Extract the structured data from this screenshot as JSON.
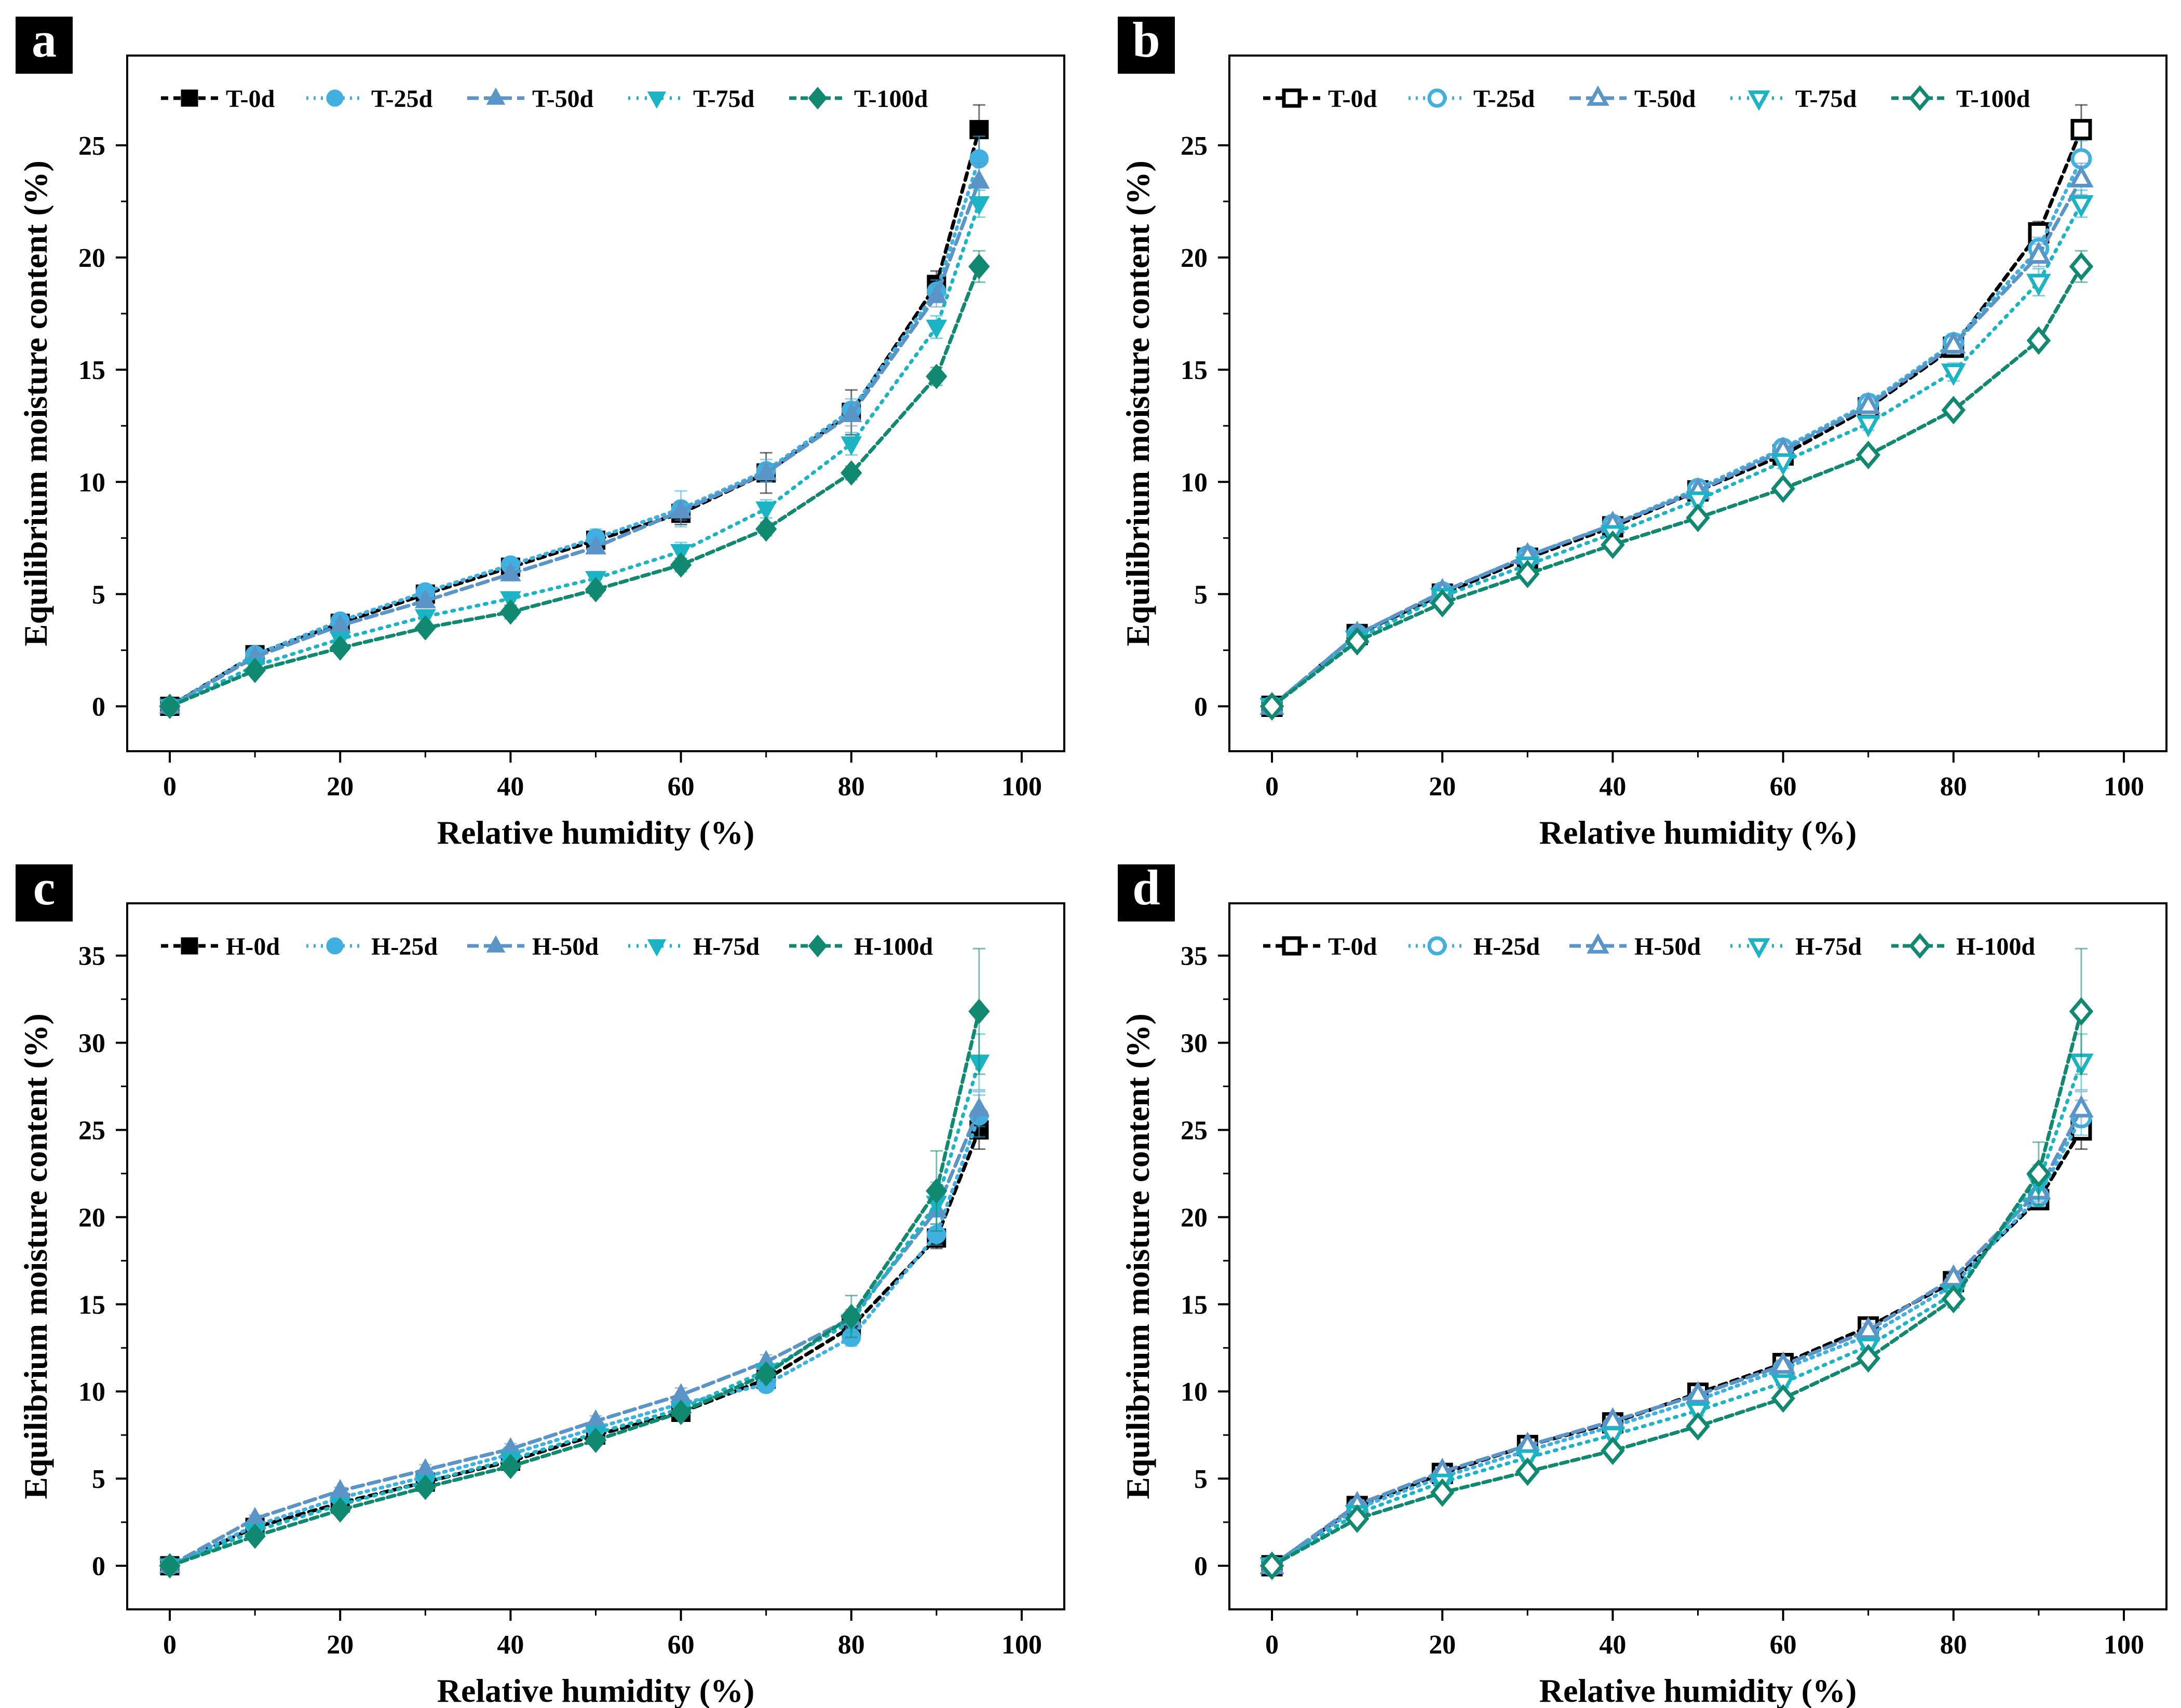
{
  "colors": [
    "#000000",
    "#3fb0e0",
    "#5b95c8",
    "#1cb4c4",
    "#118870"
  ],
  "chart_data": [
    {
      "panel": "a",
      "type": "line",
      "markers": [
        "square",
        "circle",
        "triangle-up",
        "triangle-down",
        "diamond"
      ],
      "filled": true,
      "xlabel": "Relative humidity (%)",
      "ylabel": "Equilibrium moisture content (%)",
      "xlim": [
        -5,
        105
      ],
      "ylim": [
        -2,
        29
      ],
      "xticks": [
        0,
        20,
        40,
        60,
        80,
        100
      ],
      "yticks": [
        0,
        5,
        10,
        15,
        20,
        25
      ],
      "x": [
        0,
        10,
        20,
        30,
        40,
        50,
        60,
        70,
        80,
        90,
        95
      ],
      "series": [
        {
          "name": "T-0d",
          "values": [
            0,
            2.3,
            3.7,
            5.0,
            6.2,
            7.4,
            8.6,
            10.4,
            13.1,
            18.8,
            25.7
          ],
          "errors": [
            0,
            0.3,
            0.3,
            0.3,
            0.3,
            0.4,
            0.5,
            0.9,
            1.0,
            0.6,
            1.1
          ]
        },
        {
          "name": "T-25d",
          "values": [
            0,
            2.3,
            3.8,
            5.1,
            6.3,
            7.5,
            8.8,
            10.5,
            13.2,
            18.5,
            24.4
          ],
          "errors": [
            0,
            0.2,
            0.2,
            0.3,
            0.3,
            0.4,
            0.8,
            0.5,
            0.5,
            0.5,
            1.0
          ]
        },
        {
          "name": "T-50d",
          "values": [
            0,
            2.2,
            3.6,
            4.7,
            5.9,
            7.1,
            8.7,
            10.4,
            13.0,
            18.3,
            23.4
          ],
          "errors": [
            0,
            0.2,
            0.2,
            0.3,
            0.3,
            0.3,
            0.4,
            0.4,
            0.5,
            0.5,
            0.8
          ]
        },
        {
          "name": "T-75d",
          "values": [
            0,
            1.8,
            3.0,
            4.0,
            4.8,
            5.7,
            6.9,
            8.8,
            11.7,
            16.9,
            22.4
          ],
          "errors": [
            0,
            0.2,
            0.2,
            0.2,
            0.3,
            0.3,
            0.4,
            0.4,
            0.5,
            0.5,
            0.6
          ]
        },
        {
          "name": "T-100d",
          "values": [
            0,
            1.6,
            2.6,
            3.5,
            4.2,
            5.2,
            6.3,
            7.9,
            10.4,
            14.7,
            19.6
          ],
          "errors": [
            0,
            0.1,
            0.2,
            0.2,
            0.3,
            0.3,
            0.3,
            0.3,
            0.3,
            0.4,
            0.7
          ]
        }
      ]
    },
    {
      "panel": "b",
      "type": "line",
      "markers": [
        "square",
        "circle",
        "triangle-up",
        "triangle-down",
        "diamond"
      ],
      "filled": false,
      "xlabel": "Relative humidity (%)",
      "ylabel": "Equilibrium moisture content (%)",
      "xlim": [
        -5,
        105
      ],
      "ylim": [
        -2,
        29
      ],
      "xticks": [
        0,
        20,
        40,
        60,
        80,
        100
      ],
      "yticks": [
        0,
        5,
        10,
        15,
        20,
        25
      ],
      "x": [
        0,
        10,
        20,
        30,
        40,
        50,
        60,
        70,
        80,
        90,
        95
      ],
      "series": [
        {
          "name": "T-0d",
          "values": [
            0,
            3.2,
            5.0,
            6.6,
            8.0,
            9.6,
            11.2,
            13.3,
            16.0,
            21.1,
            25.7
          ],
          "errors": [
            0,
            0.2,
            0.2,
            0.2,
            0.3,
            0.3,
            0.3,
            0.4,
            0.4,
            0.5,
            1.1
          ]
        },
        {
          "name": "T-25d",
          "values": [
            0,
            3.2,
            5.1,
            6.7,
            8.1,
            9.7,
            11.5,
            13.5,
            16.2,
            20.4,
            24.4
          ],
          "errors": [
            0,
            0.2,
            0.2,
            0.2,
            0.3,
            0.3,
            0.3,
            0.4,
            0.4,
            0.5,
            0.8
          ]
        },
        {
          "name": "T-50d",
          "values": [
            0,
            3.2,
            5.1,
            6.7,
            8.1,
            9.6,
            11.4,
            13.4,
            16.1,
            20.1,
            23.5
          ],
          "errors": [
            0,
            0.2,
            0.2,
            0.2,
            0.3,
            0.3,
            0.3,
            0.3,
            0.4,
            0.5,
            0.7
          ]
        },
        {
          "name": "T-75d",
          "values": [
            0,
            3.0,
            4.9,
            6.3,
            7.7,
            9.2,
            10.9,
            12.6,
            14.9,
            18.9,
            22.4
          ],
          "errors": [
            0,
            0.2,
            0.2,
            0.2,
            0.2,
            0.3,
            0.3,
            0.3,
            0.4,
            0.6,
            0.6
          ]
        },
        {
          "name": "T-100d",
          "values": [
            0,
            2.9,
            4.6,
            5.9,
            7.2,
            8.4,
            9.7,
            11.2,
            13.2,
            16.3,
            19.6
          ],
          "errors": [
            0,
            0.1,
            0.2,
            0.2,
            0.2,
            0.2,
            0.2,
            0.3,
            0.3,
            0.3,
            0.7
          ]
        }
      ]
    },
    {
      "panel": "c",
      "type": "line",
      "markers": [
        "square",
        "circle",
        "triangle-up",
        "triangle-down",
        "diamond"
      ],
      "filled": true,
      "xlabel": "Relative humidity (%)",
      "ylabel": "Equilibrium moisture content (%)",
      "xlim": [
        -5,
        105
      ],
      "ylim": [
        -2.5,
        38
      ],
      "xticks": [
        0,
        20,
        40,
        60,
        80,
        100
      ],
      "yticks": [
        0,
        5,
        10,
        15,
        20,
        25,
        30,
        35
      ],
      "x": [
        0,
        10,
        20,
        30,
        40,
        50,
        60,
        70,
        80,
        90,
        95
      ],
      "series": [
        {
          "name": "H-0d",
          "values": [
            0,
            2.2,
            3.6,
            4.8,
            6.0,
            7.5,
            8.8,
            10.7,
            13.7,
            18.8,
            25.0
          ],
          "errors": [
            0,
            0.2,
            0.2,
            0.3,
            0.3,
            0.3,
            0.4,
            0.4,
            0.6,
            0.6,
            1.1
          ]
        },
        {
          "name": "H-25d",
          "values": [
            0,
            2.3,
            3.9,
            5.1,
            6.4,
            7.9,
            9.3,
            10.4,
            13.1,
            19.0,
            25.8
          ],
          "errors": [
            0,
            0.2,
            0.2,
            0.3,
            0.3,
            0.3,
            0.4,
            0.4,
            0.5,
            0.6,
            1.2
          ]
        },
        {
          "name": "H-50d",
          "values": [
            0,
            2.7,
            4.3,
            5.5,
            6.7,
            8.3,
            9.8,
            11.7,
            14.2,
            20.4,
            26.2
          ],
          "errors": [
            0,
            0.2,
            0.2,
            0.3,
            0.3,
            0.3,
            0.4,
            0.4,
            0.5,
            0.8,
            1.0
          ]
        },
        {
          "name": "H-75d",
          "values": [
            0,
            2.0,
            3.5,
            4.8,
            6.1,
            7.6,
            9.0,
            11.2,
            14.0,
            20.8,
            28.9
          ],
          "errors": [
            0,
            0.2,
            0.2,
            0.3,
            0.3,
            0.3,
            0.4,
            0.4,
            0.6,
            1.2,
            1.6
          ]
        },
        {
          "name": "H-100d",
          "values": [
            0,
            1.7,
            3.2,
            4.5,
            5.7,
            7.2,
            8.8,
            11.0,
            14.3,
            21.5,
            31.8
          ],
          "errors": [
            0,
            0.2,
            0.2,
            0.2,
            0.3,
            0.3,
            0.3,
            0.4,
            1.2,
            2.3,
            3.6
          ]
        }
      ]
    },
    {
      "panel": "d",
      "type": "line",
      "markers": [
        "square",
        "circle",
        "triangle-up",
        "triangle-down",
        "diamond"
      ],
      "filled": false,
      "xlabel": "Relative humidity (%)",
      "ylabel": "Equilibrium moisture content (%)",
      "xlim": [
        -5,
        105
      ],
      "ylim": [
        -2.5,
        38
      ],
      "xticks": [
        0,
        20,
        40,
        60,
        80,
        100
      ],
      "yticks": [
        0,
        5,
        10,
        15,
        20,
        25,
        30,
        35
      ],
      "x": [
        0,
        10,
        20,
        30,
        40,
        50,
        60,
        70,
        80,
        90,
        95
      ],
      "series": [
        {
          "name": "T-0d",
          "values": [
            0,
            3.4,
            5.3,
            6.9,
            8.2,
            9.9,
            11.6,
            13.7,
            16.3,
            21.0,
            25.0
          ],
          "errors": [
            0,
            0.2,
            0.2,
            0.2,
            0.3,
            0.3,
            0.3,
            0.4,
            0.4,
            0.5,
            1.1
          ]
        },
        {
          "name": "H-25d",
          "values": [
            0,
            3.3,
            5.1,
            6.6,
            8.0,
            9.5,
            11.3,
            13.2,
            16.1,
            21.2,
            25.7
          ],
          "errors": [
            0,
            0.2,
            0.2,
            0.2,
            0.3,
            0.3,
            0.3,
            0.3,
            0.4,
            0.6,
            1.0
          ]
        },
        {
          "name": "H-50d",
          "values": [
            0,
            3.5,
            5.4,
            6.9,
            8.3,
            9.8,
            11.5,
            13.5,
            16.5,
            21.5,
            26.2
          ],
          "errors": [
            0,
            0.2,
            0.2,
            0.2,
            0.3,
            0.3,
            0.3,
            0.4,
            0.4,
            0.6,
            1.0
          ]
        },
        {
          "name": "H-75d",
          "values": [
            0,
            3.0,
            4.8,
            6.2,
            7.5,
            8.9,
            10.5,
            12.6,
            15.6,
            22.0,
            28.9
          ],
          "errors": [
            0,
            0.2,
            0.2,
            0.2,
            0.2,
            0.3,
            0.3,
            0.3,
            0.4,
            1.0,
            1.6
          ]
        },
        {
          "name": "H-100d",
          "values": [
            0,
            2.7,
            4.2,
            5.4,
            6.6,
            8.0,
            9.6,
            11.9,
            15.3,
            22.5,
            31.8
          ],
          "errors": [
            0,
            0.1,
            0.2,
            0.2,
            0.2,
            0.2,
            0.3,
            0.3,
            0.5,
            1.8,
            3.6
          ]
        }
      ]
    }
  ]
}
